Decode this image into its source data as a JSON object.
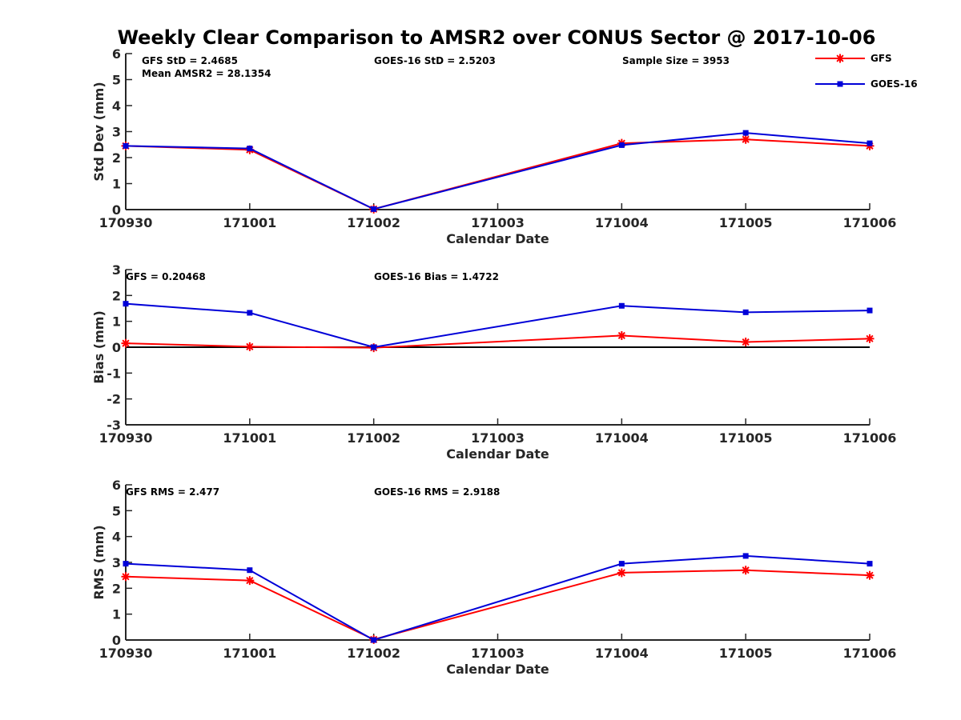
{
  "figure": {
    "title": "Weekly Clear Comparison to AMSR2 over CONUS Sector @ 2017-10-06",
    "legend": [
      {
        "name": "GFS",
        "color": "#ff0000",
        "marker": "asterisk"
      },
      {
        "name": "GOES-16",
        "color": "#0000d8",
        "marker": "square"
      }
    ],
    "legend_placement": "top-right"
  },
  "chart_data": [
    {
      "type": "line",
      "xlabel": "Calendar Date",
      "ylabel": "Std Dev (mm)",
      "categories": [
        "170930",
        "171001",
        "171002",
        "171003",
        "171004",
        "171005",
        "171006"
      ],
      "ylim": [
        0,
        6
      ],
      "yticks": [
        "0",
        "1",
        "2",
        "3",
        "4",
        "5",
        "6"
      ],
      "annotations": [
        "GFS StD = 2.4685",
        "Mean AMSR2 = 28.1354",
        "GOES-16 StD = 2.5203",
        "Sample Size = 3953"
      ],
      "series": [
        {
          "name": "GFS",
          "x": [
            "170930",
            "171001",
            "171002",
            "171004",
            "171005",
            "171006"
          ],
          "values": [
            2.45,
            2.3,
            0.02,
            2.55,
            2.7,
            2.45
          ]
        },
        {
          "name": "GOES-16",
          "x": [
            "170930",
            "171001",
            "171002",
            "171004",
            "171005",
            "171006"
          ],
          "values": [
            2.45,
            2.35,
            0.02,
            2.48,
            2.95,
            2.55
          ]
        }
      ]
    },
    {
      "type": "line",
      "xlabel": "Calendar Date",
      "ylabel": "Bias (mm)",
      "categories": [
        "170930",
        "171001",
        "171002",
        "171003",
        "171004",
        "171005",
        "171006"
      ],
      "ylim": [
        -3,
        3
      ],
      "yticks": [
        "-3",
        "-2",
        "-1",
        "0",
        "1",
        "2",
        "3"
      ],
      "zero_line": true,
      "annotations": [
        "GFS = 0.20468",
        "GOES-16 Bias  = 1.4722"
      ],
      "series": [
        {
          "name": "GFS",
          "x": [
            "170930",
            "171001",
            "171002",
            "171004",
            "171005",
            "171006"
          ],
          "values": [
            0.15,
            0.02,
            -0.02,
            0.45,
            0.2,
            0.33
          ]
        },
        {
          "name": "GOES-16",
          "x": [
            "170930",
            "171001",
            "171002",
            "171004",
            "171005",
            "171006"
          ],
          "values": [
            1.68,
            1.33,
            0.0,
            1.6,
            1.35,
            1.42
          ]
        }
      ]
    },
    {
      "type": "line",
      "xlabel": "Calendar Date",
      "ylabel": "RMS (mm)",
      "categories": [
        "170930",
        "171001",
        "171002",
        "171003",
        "171004",
        "171005",
        "171006"
      ],
      "ylim": [
        0,
        6
      ],
      "yticks": [
        "0",
        "1",
        "2",
        "3",
        "4",
        "5",
        "6"
      ],
      "annotations": [
        "GFS RMS = 2.477",
        "GOES-16 RMS = 2.9188"
      ],
      "series": [
        {
          "name": "GFS",
          "x": [
            "170930",
            "171001",
            "171002",
            "171004",
            "171005",
            "171006"
          ],
          "values": [
            2.45,
            2.3,
            0.02,
            2.6,
            2.7,
            2.5
          ]
        },
        {
          "name": "GOES-16",
          "x": [
            "170930",
            "171001",
            "171002",
            "171004",
            "171005",
            "171006"
          ],
          "values": [
            2.95,
            2.7,
            0.0,
            2.95,
            3.25,
            2.95
          ]
        }
      ]
    }
  ]
}
